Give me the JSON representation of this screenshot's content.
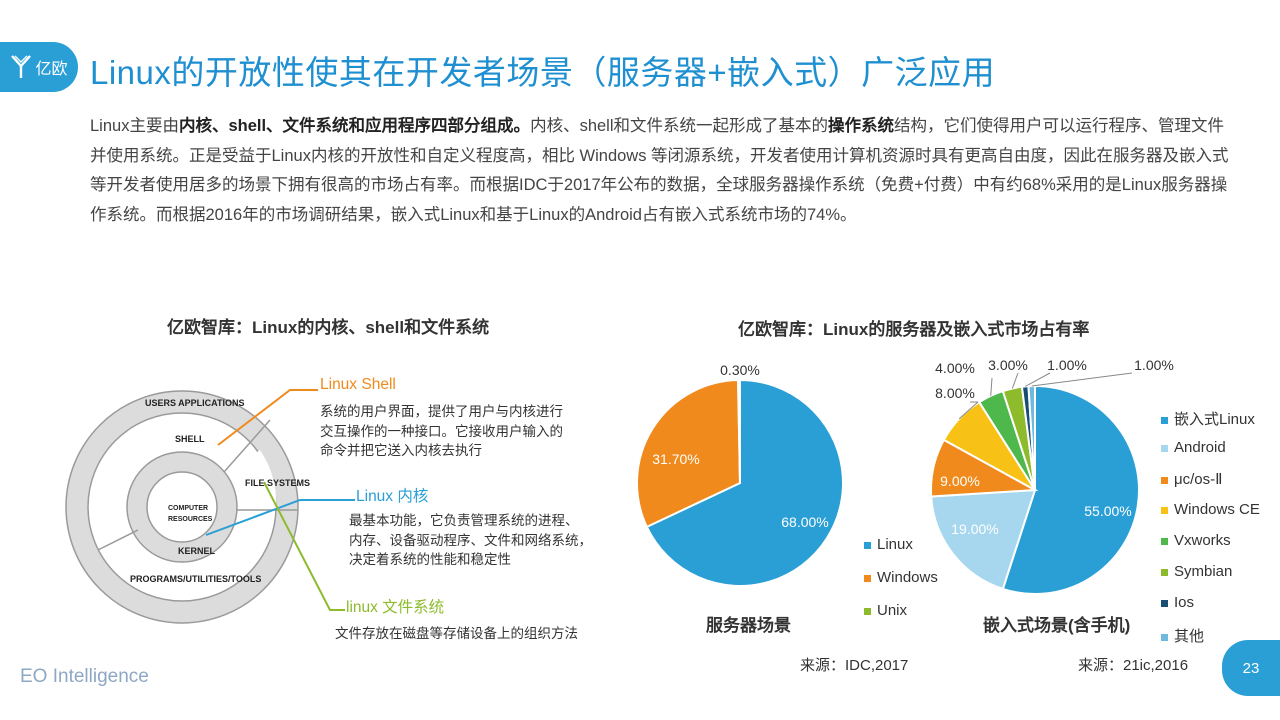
{
  "header": {
    "logo_text": "亿欧",
    "title": "Linux的开放性使其在开发者场景（服务器+嵌入式）广泛应用"
  },
  "intro": [
    {
      "t": "Linux主要由",
      "b": false
    },
    {
      "t": "内核、shell、文件系统和应用程序四部分组成。",
      "b": true
    },
    {
      "t": "内核、shell和文件系统一起形成了基本的",
      "b": false
    },
    {
      "t": "操作系统",
      "b": true
    },
    {
      "t": "结构，它们使得用户可以运行程序、管理文件并使用系统。正是受益于Linux内核的开放性和自定义程度高，相比 Windows 等闭源系统，开发者使用计算机资源时具有更高自由度，因此在服务器及嵌入式等开发者使用居多的场景下拥有很高的市场占有率。而根据IDC于2017年公布的数据，全球服务器操作系统（免费+付费）中有约68%采用的是Linux服务器操作系统。而根据2016年的市场调研结果，嵌入式Linux和基于Linux的Android占有嵌入式系统市场的74%。",
      "b": false
    }
  ],
  "diagram": {
    "subtitle": "亿欧智库：Linux的内核、shell和文件系统",
    "labels": {
      "users_applications": "USERS APPLICATIONS",
      "shell": "SHELL",
      "file_systems": "FILE SYSTEMS",
      "computer": "COMPUTER",
      "resources": "RESOURCES",
      "kernel": "KERNEL",
      "programs": "PROGRAMS/UTILITIES/TOOLS"
    },
    "annotations": [
      {
        "title": "Linux Shell",
        "color": "#f08a1c",
        "desc": [
          "系统的用户界面，提供了用户与内核进行",
          "交互操作的一种接口。它接收用户输入的",
          "命令并把它送入内核去执行"
        ]
      },
      {
        "title": "Linux 内核",
        "color": "#2a9fd6",
        "desc": [
          "最基本功能，它负责管理系统的进程、",
          "内存、设备驱动程序、文件和网络系统，",
          "决定着系统的性能和稳定性"
        ]
      },
      {
        "title": "linux 文件系统",
        "color": "#8dbb2b",
        "desc": [
          "文件存放在磁盘等存储设备上的组织方法"
        ]
      }
    ]
  },
  "chart_title": "亿欧智库：Linux的服务器及嵌入式市场占有率",
  "chart_data": [
    {
      "type": "pie",
      "title": "服务器场景",
      "categories": [
        "Linux",
        "Windows",
        "Unix"
      ],
      "values": [
        68.0,
        31.7,
        0.3
      ],
      "labels": [
        "68.00%",
        "31.70%",
        "0.30%"
      ],
      "colors": [
        "#2a9fd6",
        "#f08a1c",
        "#8dbb2b"
      ],
      "legend": "right",
      "source": "来源：IDC,2017"
    },
    {
      "type": "pie",
      "title": "嵌入式场景(含手机)",
      "categories": [
        "嵌入式Linux",
        "Android",
        "μc/os-Ⅱ",
        "Windows CE",
        "Vxworks",
        "Symbian",
        "Ios",
        "其他"
      ],
      "values": [
        55.0,
        19.0,
        9.0,
        8.0,
        4.0,
        3.0,
        1.0,
        1.0
      ],
      "labels": [
        "55.00%",
        "19.00%",
        "9.00%",
        "8.00%",
        "4.00%",
        "3.00%",
        "1.00%",
        "1.00%"
      ],
      "colors": [
        "#2a9fd6",
        "#a6d7ee",
        "#f08a1c",
        "#f7c215",
        "#4fb84c",
        "#8dbb2b",
        "#1a4d73",
        "#6fb8e0"
      ],
      "legend": "right",
      "source": "来源：21ic,2016"
    }
  ],
  "footer": {
    "brand": "EO Intelligence",
    "page": "23"
  }
}
